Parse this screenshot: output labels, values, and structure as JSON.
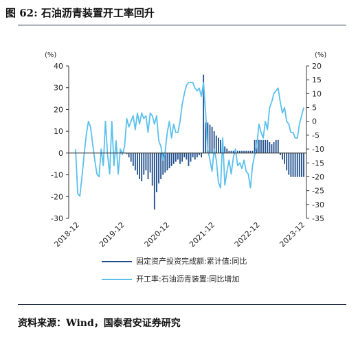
{
  "figure": {
    "title": "图 62: 石油沥青装置开工率回升",
    "source": "资料来源：Wind，国泰君安证券研究"
  },
  "chart_data": {
    "type": "bar+line",
    "x_tick_labels": [
      "2018-12",
      "2019-12",
      "2020-12",
      "2021-12",
      "2022-12",
      "2023-12"
    ],
    "left_axis": {
      "unit": "(%)",
      "ylim": [
        -30,
        40
      ],
      "ticks": [
        40,
        30,
        20,
        10,
        0,
        -10,
        -20,
        -30
      ]
    },
    "right_axis": {
      "unit": "(%)",
      "ylim": [
        -35,
        20
      ],
      "ticks": [
        20,
        15,
        10,
        5,
        0,
        -5,
        -10,
        -15,
        -20,
        -25,
        -30,
        -35
      ]
    },
    "series": [
      {
        "name": "固定资产投资完成额:累计值:同比",
        "type": "bar",
        "axis": "left",
        "color": "#1f4e8c",
        "values": [
          0,
          0,
          0,
          0,
          0,
          0,
          0,
          0,
          0,
          0,
          0,
          0,
          0,
          0,
          0,
          0,
          0,
          0,
          0,
          0,
          0,
          1,
          0.5,
          0.2,
          -0.5,
          -2,
          -4,
          -6,
          -8,
          -10,
          -12,
          -13,
          -10,
          -8,
          -12,
          -9,
          -15,
          -26,
          -18,
          -14,
          -12,
          -10,
          -9,
          -8,
          -7,
          -6,
          -5,
          -4,
          -3,
          -5,
          -4,
          -2,
          -3,
          -6,
          -4,
          -2,
          -3,
          -2,
          -1,
          -2,
          36,
          14,
          14,
          13,
          12,
          10,
          8,
          7,
          6,
          4,
          3,
          2,
          1,
          1,
          1,
          1,
          1,
          1,
          1,
          1,
          1,
          1,
          1,
          1,
          6,
          6,
          6,
          6,
          6,
          6,
          6,
          5,
          4,
          5,
          6,
          6,
          -1,
          -3,
          -5,
          -8,
          -10,
          -11,
          -11,
          -11,
          -11,
          -11,
          -11,
          -11
        ]
      },
      {
        "name": "开工率:石油沥青装置:同比增加",
        "type": "line",
        "axis": "right",
        "color": "#5bc0ee",
        "values": [
          -10,
          -26,
          -27,
          -20,
          -12,
          -5,
          0,
          -2,
          -8,
          -14,
          -19,
          -20,
          -10,
          -16,
          0,
          -12,
          -19,
          0,
          -16,
          -7,
          -19,
          -10,
          -12,
          -9,
          1,
          -2,
          0,
          2,
          -3,
          3,
          -1,
          3,
          1,
          2,
          -4,
          3,
          2,
          -1,
          2,
          -7,
          -9,
          -14,
          -11,
          -4,
          0,
          -6,
          -1,
          -4,
          -4,
          0,
          6,
          10,
          13,
          14,
          14,
          14,
          12,
          11,
          12,
          9,
          14,
          3,
          -10,
          -14,
          -18,
          -10,
          -14,
          -22,
          -24,
          -6,
          -23,
          -18,
          -14,
          -19,
          -13,
          -10,
          -16,
          -15,
          -17,
          -14,
          -18,
          -19,
          -24,
          -16,
          -12,
          -9,
          -1,
          -4,
          -6,
          0,
          -3,
          5,
          7,
          10,
          11,
          12,
          7,
          3,
          5,
          0,
          -1,
          -4,
          -4,
          -6,
          -6,
          -1,
          2,
          5
        ]
      }
    ],
    "legend": [
      "固定资产投资完成额:累计值:同比",
      "开工率:石油沥青装置:同比增加"
    ]
  }
}
